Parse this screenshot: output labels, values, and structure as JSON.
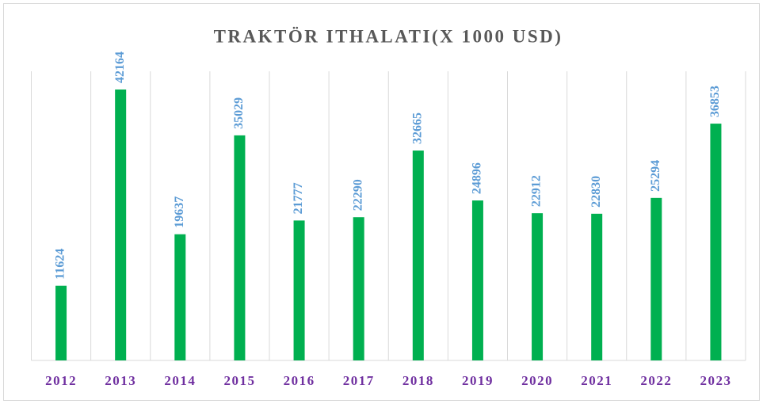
{
  "chart_data": {
    "type": "bar",
    "title": "TRAKTÖR ITHALATI(X 1000 USD)",
    "categories": [
      "2012",
      "2013",
      "2014",
      "2015",
      "2016",
      "2017",
      "2018",
      "2019",
      "2020",
      "2021",
      "2022",
      "2023"
    ],
    "values": [
      11624,
      42164,
      19637,
      35029,
      21777,
      22290,
      32665,
      24896,
      22912,
      22830,
      25294,
      36853
    ],
    "color": "#00b050",
    "label_color": "#5b9bd5",
    "ylim": [
      0,
      45000
    ],
    "grid": true
  }
}
